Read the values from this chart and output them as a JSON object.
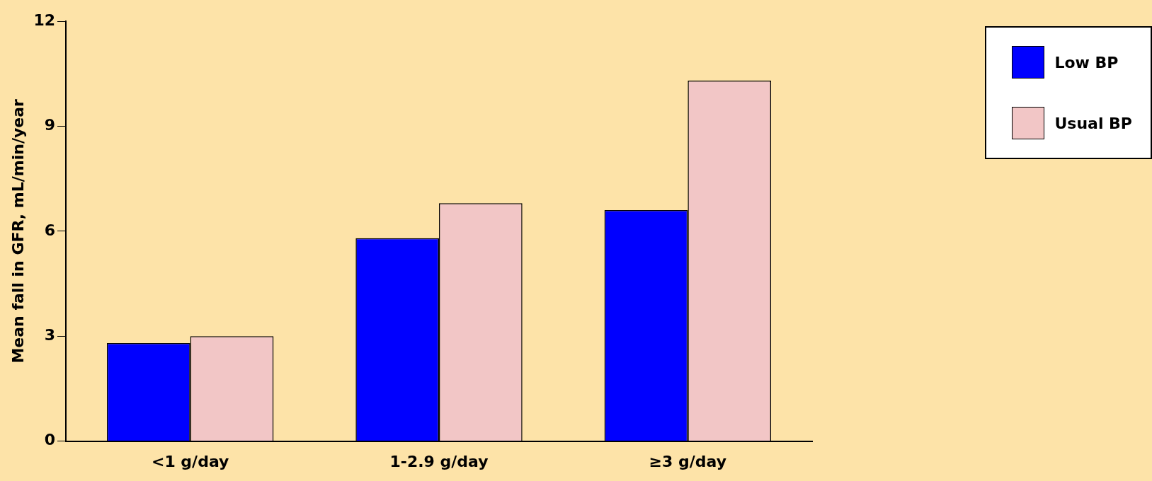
{
  "chart_data": {
    "type": "bar",
    "ylabel": "Mean fall in GFR, mL/min/year",
    "categories": [
      "<1 g/day",
      "1-2.9 g/day",
      "≥3 g/day"
    ],
    "series": [
      {
        "name": "Low BP",
        "color": "#0000ff",
        "values": [
          2.8,
          5.8,
          6.6
        ]
      },
      {
        "name": "Usual BP",
        "color": "#f2c6c6",
        "values": [
          3.0,
          6.8,
          10.3
        ]
      }
    ],
    "ylim": [
      0,
      12
    ],
    "yticks": [
      0,
      3,
      6,
      9,
      12
    ],
    "grid": false,
    "legend": "top right"
  }
}
